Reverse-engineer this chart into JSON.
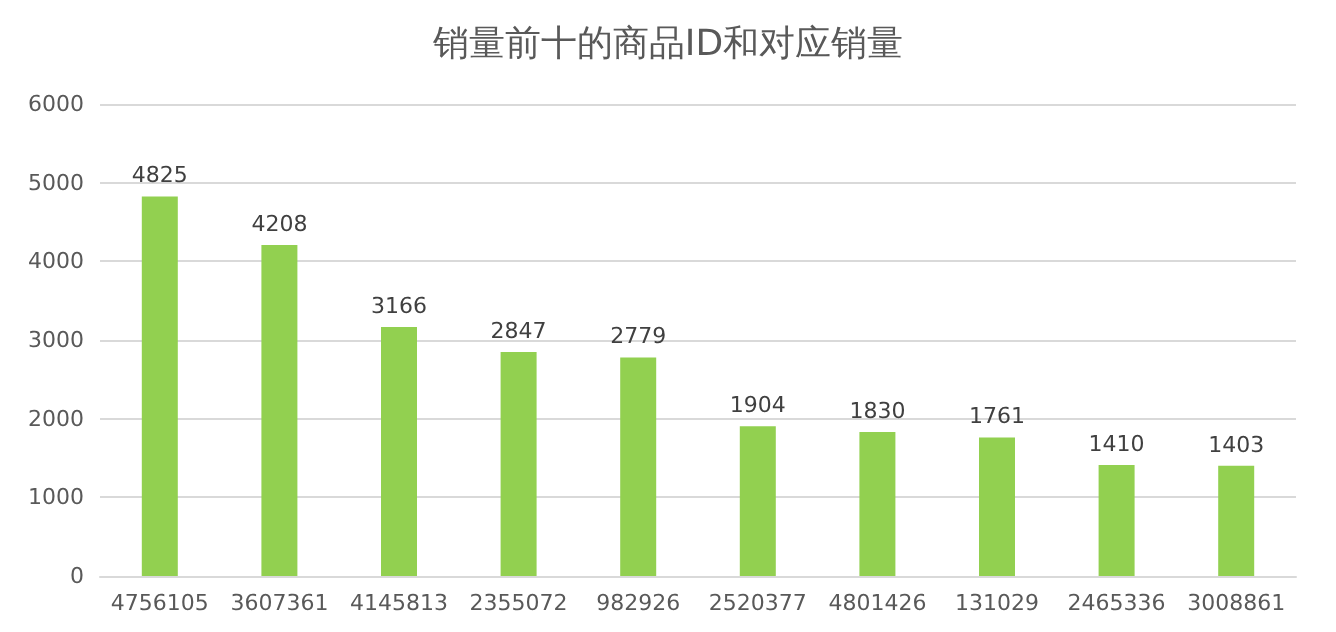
{
  "chart_data": {
    "type": "bar",
    "title": "销量前十的商品ID和对应销量",
    "categories": [
      "4756105",
      "3607361",
      "4145813",
      "2355072",
      "982926",
      "2520377",
      "4801426",
      "131029",
      "2465336",
      "3008861"
    ],
    "values": [
      4825,
      4208,
      3166,
      2847,
      2779,
      1904,
      1830,
      1761,
      1410,
      1403
    ],
    "color": "#92d050",
    "ylim": [
      0,
      6000
    ],
    "yticks": [
      0,
      1000,
      2000,
      3000,
      4000,
      5000,
      6000
    ],
    "grid": "y",
    "data_labels": true
  }
}
